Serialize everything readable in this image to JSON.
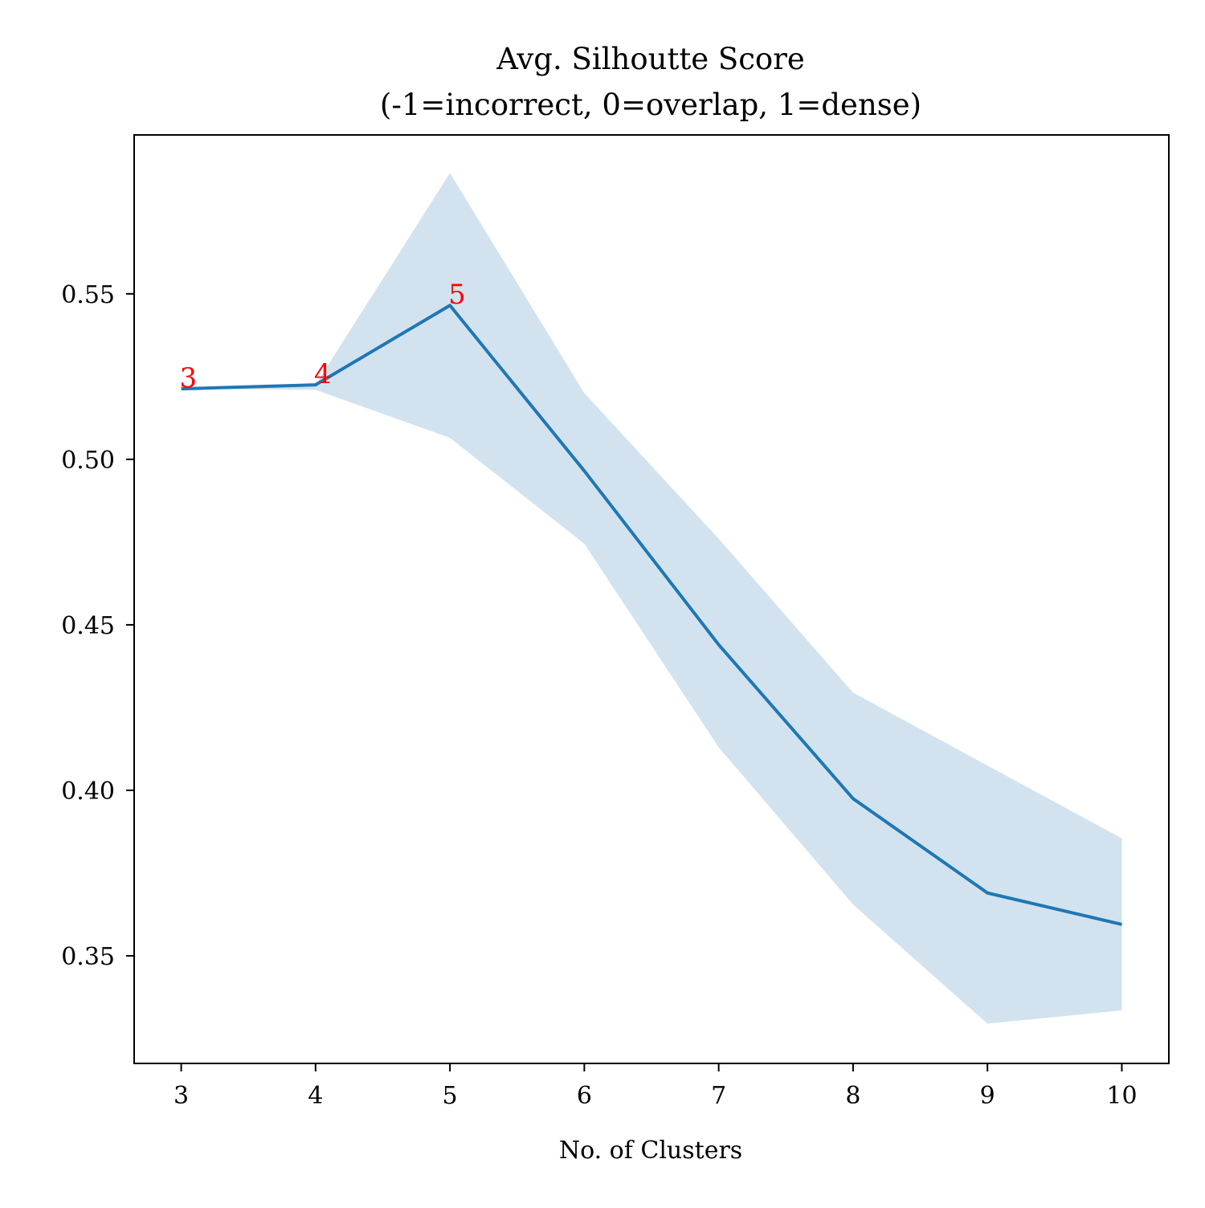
{
  "chart_data": {
    "type": "line",
    "title": "Avg. Silhoutte Score",
    "subtitle": "(-1=incorrect, 0=overlap, 1=dense)",
    "xlabel": "No. of Clusters",
    "ylabel": "",
    "x": [
      3,
      4,
      5,
      6,
      7,
      8,
      9,
      10
    ],
    "x_ticks": [
      "3",
      "4",
      "5",
      "6",
      "7",
      "8",
      "9",
      "10"
    ],
    "y_ticks": [
      "0.35",
      "0.40",
      "0.45",
      "0.50",
      "0.55"
    ],
    "xlim": [
      2.65,
      10.35
    ],
    "ylim": [
      0.3175,
      0.598
    ],
    "grid": false,
    "series": [
      {
        "values": [
          0.5213,
          0.5225,
          0.5465,
          0.4965,
          0.444,
          0.3975,
          0.369,
          0.3595
        ],
        "band_upper": [
          0.5213,
          0.5225,
          0.5865,
          0.52,
          0.476,
          0.4295,
          0.4075,
          0.3855
        ],
        "band_lower": [
          0.5213,
          0.521,
          0.5065,
          0.4745,
          0.413,
          0.3655,
          0.3295,
          0.3335
        ],
        "color": "#1f77b4",
        "band_color": "#d2e3ef"
      }
    ],
    "annotations": [
      {
        "text": "3",
        "x": 3,
        "y": 0.5213,
        "color": "#ff0000"
      },
      {
        "text": "4",
        "x": 4,
        "y": 0.5225,
        "color": "#ff0000"
      },
      {
        "text": "5",
        "x": 5,
        "y": 0.5465,
        "color": "#ff0000"
      }
    ]
  }
}
